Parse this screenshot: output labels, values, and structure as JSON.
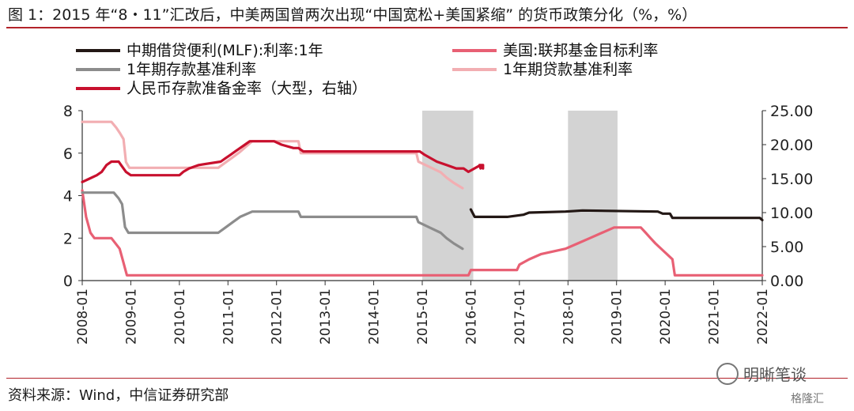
{
  "page": {
    "title": "图 1：2015 年“8・11”汇改后，中美两国曾两次出现“中国宽松+美国紧缩” 的货币政策分化（%，%）",
    "source": "资料来源：Wind，中信证券研究部",
    "watermark": "明晰笔谈",
    "watermark2": "格隆汇"
  },
  "chart_data": {
    "type": "line",
    "title": "",
    "xlabel": "",
    "ylabel": "",
    "x_ticks": [
      "2008-01",
      "2009-01",
      "2010-01",
      "2011-01",
      "2012-01",
      "2013-01",
      "2014-01",
      "2015-01",
      "2016-01",
      "2017-01",
      "2018-01",
      "2019-01",
      "2020-01",
      "2021-01",
      "2022-01"
    ],
    "x_range": [
      2008.0,
      2022.0
    ],
    "ylim": [
      0,
      8
    ],
    "y_ticks": [
      0,
      2,
      4,
      6,
      8
    ],
    "y2lim": [
      0,
      25
    ],
    "y2_ticks": [
      "0.00",
      "5.00",
      "10.00",
      "15.00",
      "20.00",
      "25.00"
    ],
    "grid": false,
    "legend_position": "top",
    "shaded_periods": [
      [
        2015.0,
        2016.05
      ],
      [
        2018.0,
        2019.02
      ]
    ],
    "series": [
      {
        "name": "中期借贷便利(MLF):利率:1年",
        "color": "#231815",
        "axis": "left",
        "points": [
          [
            2016.0,
            3.35
          ],
          [
            2016.08,
            3.0
          ],
          [
            2016.75,
            3.0
          ],
          [
            2017.08,
            3.1
          ],
          [
            2017.2,
            3.2
          ],
          [
            2017.95,
            3.25
          ],
          [
            2018.3,
            3.3
          ],
          [
            2019.85,
            3.25
          ],
          [
            2019.95,
            3.15
          ],
          [
            2020.1,
            3.15
          ],
          [
            2020.15,
            2.95
          ],
          [
            2021.95,
            2.95
          ],
          [
            2022.0,
            2.85
          ]
        ]
      },
      {
        "name": "美国:联邦基金目标利率",
        "color": "#e86074",
        "axis": "left",
        "points": [
          [
            2008.0,
            4.25
          ],
          [
            2008.08,
            3.0
          ],
          [
            2008.17,
            2.25
          ],
          [
            2008.25,
            2.0
          ],
          [
            2008.6,
            2.0
          ],
          [
            2008.77,
            1.5
          ],
          [
            2008.83,
            1.0
          ],
          [
            2008.92,
            0.25
          ],
          [
            2015.95,
            0.25
          ],
          [
            2016.0,
            0.5
          ],
          [
            2016.95,
            0.5
          ],
          [
            2017.0,
            0.75
          ],
          [
            2017.2,
            1.0
          ],
          [
            2017.45,
            1.25
          ],
          [
            2017.95,
            1.5
          ],
          [
            2018.2,
            1.75
          ],
          [
            2018.45,
            2.0
          ],
          [
            2018.7,
            2.25
          ],
          [
            2018.95,
            2.5
          ],
          [
            2019.5,
            2.5
          ],
          [
            2019.6,
            2.25
          ],
          [
            2019.7,
            2.0
          ],
          [
            2019.8,
            1.75
          ],
          [
            2020.15,
            1.0
          ],
          [
            2020.2,
            0.25
          ],
          [
            2022.0,
            0.25
          ]
        ]
      },
      {
        "name": "1年期存款基准利率",
        "color": "#8c8c8c",
        "axis": "left",
        "points": [
          [
            2008.0,
            4.14
          ],
          [
            2008.65,
            4.14
          ],
          [
            2008.75,
            3.87
          ],
          [
            2008.82,
            3.6
          ],
          [
            2008.88,
            2.52
          ],
          [
            2008.95,
            2.25
          ],
          [
            2010.8,
            2.25
          ],
          [
            2010.95,
            2.5
          ],
          [
            2011.1,
            2.75
          ],
          [
            2011.25,
            3.0
          ],
          [
            2011.5,
            3.25
          ],
          [
            2012.45,
            3.25
          ],
          [
            2012.5,
            3.0
          ],
          [
            2014.88,
            3.0
          ],
          [
            2014.92,
            2.75
          ],
          [
            2015.15,
            2.5
          ],
          [
            2015.38,
            2.25
          ],
          [
            2015.5,
            2.0
          ],
          [
            2015.65,
            1.75
          ],
          [
            2015.83,
            1.5
          ]
        ]
      },
      {
        "name": "1年期贷款基准利率",
        "color": "#f2aeb2",
        "axis": "left",
        "points": [
          [
            2008.0,
            7.47
          ],
          [
            2008.6,
            7.47
          ],
          [
            2008.7,
            7.2
          ],
          [
            2008.78,
            6.93
          ],
          [
            2008.85,
            6.66
          ],
          [
            2008.9,
            5.58
          ],
          [
            2008.97,
            5.31
          ],
          [
            2010.8,
            5.31
          ],
          [
            2010.95,
            5.56
          ],
          [
            2011.1,
            5.81
          ],
          [
            2011.25,
            6.06
          ],
          [
            2011.5,
            6.56
          ],
          [
            2012.45,
            6.56
          ],
          [
            2012.5,
            6.0
          ],
          [
            2014.88,
            6.0
          ],
          [
            2014.92,
            5.6
          ],
          [
            2015.15,
            5.35
          ],
          [
            2015.38,
            5.1
          ],
          [
            2015.5,
            4.85
          ],
          [
            2015.65,
            4.6
          ],
          [
            2015.83,
            4.35
          ]
        ]
      },
      {
        "name": "人民币存款准备金率（大型，右轴）",
        "color": "#c8102e",
        "axis": "right",
        "points": [
          [
            2008.0,
            14.5
          ],
          [
            2008.15,
            15.0
          ],
          [
            2008.3,
            15.5
          ],
          [
            2008.4,
            16.0
          ],
          [
            2008.5,
            17.0
          ],
          [
            2008.6,
            17.5
          ],
          [
            2008.75,
            17.5
          ],
          [
            2008.8,
            17.0
          ],
          [
            2008.9,
            16.0
          ],
          [
            2009.0,
            15.5
          ],
          [
            2010.0,
            15.5
          ],
          [
            2010.08,
            16.0
          ],
          [
            2010.2,
            16.5
          ],
          [
            2010.4,
            17.0
          ],
          [
            2010.85,
            17.5
          ],
          [
            2010.95,
            18.0
          ],
          [
            2011.05,
            18.5
          ],
          [
            2011.15,
            19.0
          ],
          [
            2011.25,
            19.5
          ],
          [
            2011.35,
            20.0
          ],
          [
            2011.45,
            20.5
          ],
          [
            2011.95,
            20.5
          ],
          [
            2012.1,
            20.0
          ],
          [
            2012.35,
            19.5
          ],
          [
            2012.45,
            19.5
          ],
          [
            2012.55,
            19.0
          ],
          [
            2014.95,
            19.0
          ],
          [
            2015.05,
            18.5
          ],
          [
            2015.3,
            17.5
          ],
          [
            2015.5,
            17.0
          ],
          [
            2015.7,
            16.5
          ],
          [
            2015.85,
            16.5
          ],
          [
            2015.95,
            16.0
          ],
          [
            2016.2,
            17.0
          ],
          [
            2016.22,
            17.0
          ],
          [
            2016.18,
            17.0
          ],
          [
            2016.2,
            16.5
          ],
          [
            2016.25,
            17.0
          ],
          [
            2016.2,
            17.0
          ],
          [
            2016.25,
            17.0
          ],
          [
            2016.25,
            17.0
          ],
          [
            2016.25,
            17.0
          ],
          [
            2016.25,
            16.5
          ],
          [
            2016.25,
            17.0
          ]
        ]
      }
    ]
  }
}
